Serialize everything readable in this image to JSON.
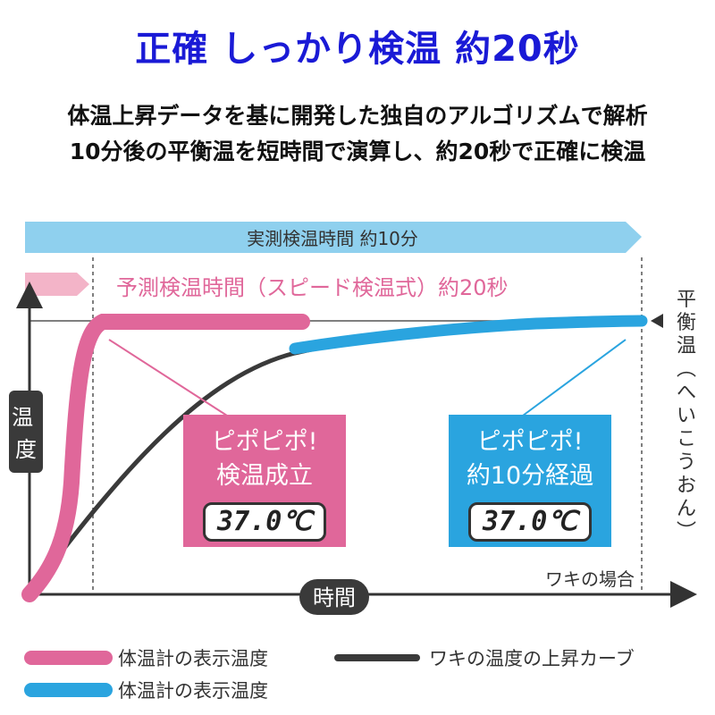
{
  "header": {
    "title": "正確 しっかり検温 約20秒",
    "subtitle_line1": "体温上昇データを基に開発した独自のアルゴリズムで解析",
    "subtitle_line2": "10分後の平衡温を短時間で演算し、約20秒で正確に検温"
  },
  "colors": {
    "title": "#1a1ad6",
    "pink": "#e0679a",
    "blue": "#2aa4df",
    "dark_curve": "#3a3a3a",
    "arrow_blue": "#8fd0ee",
    "arrow_pink": "#f3b4c8"
  },
  "chart_data": {
    "type": "line",
    "xlabel": "時間",
    "ylabel": "温度",
    "x_note": "ワキの場合",
    "y_right_label": "平衡温（へいこうおん）",
    "banners": [
      {
        "label": "実測検温時間 約10分",
        "color": "blue"
      },
      {
        "label": "予測検温時間（スピード検温式）約20秒",
        "color": "pink"
      }
    ],
    "series": [
      {
        "name": "体温計の表示温度",
        "color": "pink",
        "points": [
          [
            0,
            0
          ],
          [
            0.05,
            0.35
          ],
          [
            0.1,
            1.0
          ],
          [
            0.45,
            1.0
          ]
        ]
      },
      {
        "name": "体温計の表示温度",
        "color": "blue",
        "points": [
          [
            0.43,
            0.9
          ],
          [
            0.6,
            0.95
          ],
          [
            0.8,
            0.99
          ],
          [
            1.0,
            1.0
          ]
        ]
      },
      {
        "name": "ワキの温度の上昇カーブ",
        "color": "dark",
        "points": [
          [
            0,
            0
          ],
          [
            0.1,
            0.3
          ],
          [
            0.2,
            0.55
          ],
          [
            0.35,
            0.76
          ],
          [
            0.5,
            0.87
          ],
          [
            0.7,
            0.95
          ],
          [
            1.0,
            1.0
          ]
        ]
      }
    ],
    "callouts": [
      {
        "line1": "ピポピポ!",
        "line2": "検温成立",
        "reading": "37.0℃",
        "color": "pink"
      },
      {
        "line1": "ピポピポ!",
        "line2": "約10分経過",
        "reading": "37.0℃",
        "color": "blue"
      }
    ],
    "legend": [
      {
        "label": "体温計の表示温度",
        "color": "pink"
      },
      {
        "label": "ワキの温度の上昇カーブ",
        "color": "dark"
      },
      {
        "label": "体温計の表示温度",
        "color": "blue"
      }
    ]
  }
}
